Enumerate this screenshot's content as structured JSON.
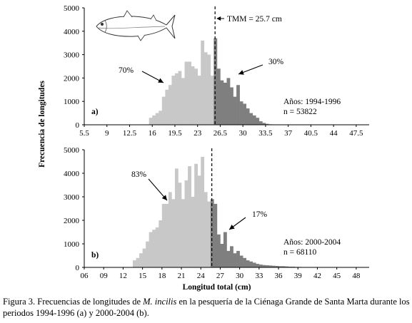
{
  "chart_data": [
    {
      "type": "bar",
      "panel_label": "a)",
      "ylabel": "Frecuencia de longitudes",
      "ylim": [
        0,
        5000
      ],
      "yticks": [
        0,
        1000,
        2000,
        3000,
        4000,
        5000
      ],
      "xlim": [
        5.5,
        49.5
      ],
      "xticks": [
        5.5,
        9,
        12.5,
        16,
        19.5,
        23,
        26.5,
        30,
        33.5,
        37,
        40.5,
        44,
        47.5
      ],
      "xtick_labels": [
        "5.5",
        "9",
        "12.5",
        "16",
        "19.5",
        "23",
        "26.5",
        "30",
        "33.5",
        "37",
        "40.5",
        "44",
        "47.5"
      ],
      "bin_width": 0.5,
      "threshold": 25.7,
      "threshold_label": "TMM = 25.7 cm",
      "annotations": [
        "70%",
        "30%"
      ],
      "info_lines": [
        "Años: 1994-1996",
        "n = 53822"
      ],
      "bins": [
        {
          "x": 15.75,
          "y": 300
        },
        {
          "x": 16.25,
          "y": 400
        },
        {
          "x": 16.75,
          "y": 500
        },
        {
          "x": 17.25,
          "y": 600
        },
        {
          "x": 17.75,
          "y": 1200
        },
        {
          "x": 18.25,
          "y": 1500
        },
        {
          "x": 18.75,
          "y": 1700
        },
        {
          "x": 19.25,
          "y": 2100
        },
        {
          "x": 19.75,
          "y": 2200
        },
        {
          "x": 20.25,
          "y": 2300
        },
        {
          "x": 20.75,
          "y": 2000
        },
        {
          "x": 21.25,
          "y": 2700
        },
        {
          "x": 21.75,
          "y": 2700
        },
        {
          "x": 22.25,
          "y": 2500
        },
        {
          "x": 22.75,
          "y": 2400
        },
        {
          "x": 23.25,
          "y": 2100
        },
        {
          "x": 23.75,
          "y": 3600
        },
        {
          "x": 24.25,
          "y": 3100
        },
        {
          "x": 24.75,
          "y": 3000
        },
        {
          "x": 25.25,
          "y": 2100
        },
        {
          "x": 25.75,
          "y": 3700
        },
        {
          "x": 26.25,
          "y": 2400
        },
        {
          "x": 26.75,
          "y": 1900
        },
        {
          "x": 27.25,
          "y": 1800
        },
        {
          "x": 27.75,
          "y": 2000
        },
        {
          "x": 28.25,
          "y": 1600
        },
        {
          "x": 28.75,
          "y": 1200
        },
        {
          "x": 29.25,
          "y": 1700
        },
        {
          "x": 29.75,
          "y": 1000
        },
        {
          "x": 30.25,
          "y": 900
        },
        {
          "x": 30.75,
          "y": 700
        },
        {
          "x": 31.25,
          "y": 500
        },
        {
          "x": 31.75,
          "y": 400
        },
        {
          "x": 32.25,
          "y": 300
        },
        {
          "x": 32.75,
          "y": 150
        },
        {
          "x": 33.25,
          "y": 80
        },
        {
          "x": 33.75,
          "y": 40
        },
        {
          "x": 34.25,
          "y": 20
        }
      ]
    },
    {
      "type": "bar",
      "panel_label": "b)",
      "ylabel": "Frecuencia de longitudes",
      "ylim": [
        0,
        5000
      ],
      "yticks": [
        0,
        1000,
        2000,
        3000,
        4000,
        5000
      ],
      "xlim": [
        6,
        50
      ],
      "xticks": [
        6,
        9,
        12,
        15,
        18,
        21,
        24,
        27,
        30,
        33,
        36,
        39,
        42,
        45,
        48
      ],
      "xtick_labels": [
        "06",
        "09",
        "12",
        "15",
        "18",
        "21",
        "24",
        "27",
        "30",
        "33",
        "36",
        "39",
        "42",
        "45",
        "48"
      ],
      "bin_width": 0.5,
      "threshold": 25.7,
      "annotations": [
        "83%",
        "17%"
      ],
      "info_lines": [
        "Años: 2000-2004",
        "n = 68110"
      ],
      "xlabel": "Longitud total (cm)",
      "bins": [
        {
          "x": 13.75,
          "y": 300
        },
        {
          "x": 14.25,
          "y": 400
        },
        {
          "x": 14.75,
          "y": 600
        },
        {
          "x": 15.25,
          "y": 800
        },
        {
          "x": 15.75,
          "y": 1100
        },
        {
          "x": 16.25,
          "y": 1500
        },
        {
          "x": 16.75,
          "y": 1600
        },
        {
          "x": 17.25,
          "y": 1700
        },
        {
          "x": 17.75,
          "y": 2000
        },
        {
          "x": 18.25,
          "y": 2700
        },
        {
          "x": 18.75,
          "y": 2700
        },
        {
          "x": 19.25,
          "y": 3200
        },
        {
          "x": 19.75,
          "y": 2900
        },
        {
          "x": 20.25,
          "y": 4200
        },
        {
          "x": 20.75,
          "y": 3600
        },
        {
          "x": 21.25,
          "y": 2900
        },
        {
          "x": 21.75,
          "y": 3700
        },
        {
          "x": 22.25,
          "y": 4300
        },
        {
          "x": 22.75,
          "y": 3000
        },
        {
          "x": 23.25,
          "y": 4400
        },
        {
          "x": 23.75,
          "y": 3900
        },
        {
          "x": 24.25,
          "y": 4700
        },
        {
          "x": 24.75,
          "y": 3200
        },
        {
          "x": 25.25,
          "y": 2800
        },
        {
          "x": 25.75,
          "y": 2900
        },
        {
          "x": 26.25,
          "y": 2700
        },
        {
          "x": 26.75,
          "y": 1400
        },
        {
          "x": 27.25,
          "y": 1000
        },
        {
          "x": 27.75,
          "y": 1500
        },
        {
          "x": 28.25,
          "y": 700
        },
        {
          "x": 28.75,
          "y": 900
        },
        {
          "x": 29.25,
          "y": 600
        },
        {
          "x": 29.75,
          "y": 700
        },
        {
          "x": 30.25,
          "y": 500
        },
        {
          "x": 30.75,
          "y": 400
        },
        {
          "x": 31.25,
          "y": 300
        },
        {
          "x": 31.75,
          "y": 250
        },
        {
          "x": 32.25,
          "y": 200
        },
        {
          "x": 32.75,
          "y": 150
        },
        {
          "x": 33.25,
          "y": 120
        },
        {
          "x": 33.75,
          "y": 100
        },
        {
          "x": 34.25,
          "y": 90
        },
        {
          "x": 34.75,
          "y": 80
        },
        {
          "x": 35.25,
          "y": 70
        },
        {
          "x": 35.75,
          "y": 60
        },
        {
          "x": 36.25,
          "y": 50
        },
        {
          "x": 36.75,
          "y": 50
        },
        {
          "x": 37.25,
          "y": 40
        },
        {
          "x": 37.75,
          "y": 30
        },
        {
          "x": 38.25,
          "y": 30
        },
        {
          "x": 38.75,
          "y": 20
        },
        {
          "x": 39.25,
          "y": 20
        },
        {
          "x": 39.75,
          "y": 10
        },
        {
          "x": 40.25,
          "y": 10
        }
      ]
    }
  ],
  "colors": {
    "below_threshold": "#c8c8c8",
    "above_threshold": "#7f7f7f",
    "axis": "#000000",
    "fish_outline": "#333333"
  },
  "caption": {
    "prefix": "Figura 3. Frecuencias de longitudes de ",
    "species": "M. incilis",
    "suffix": " en la pesquería de la Ciénaga Grande de Santa Marta durante los periodos 1994-1996 (a) y 2000-2004 (b)."
  },
  "illustration": "fish-illustration"
}
